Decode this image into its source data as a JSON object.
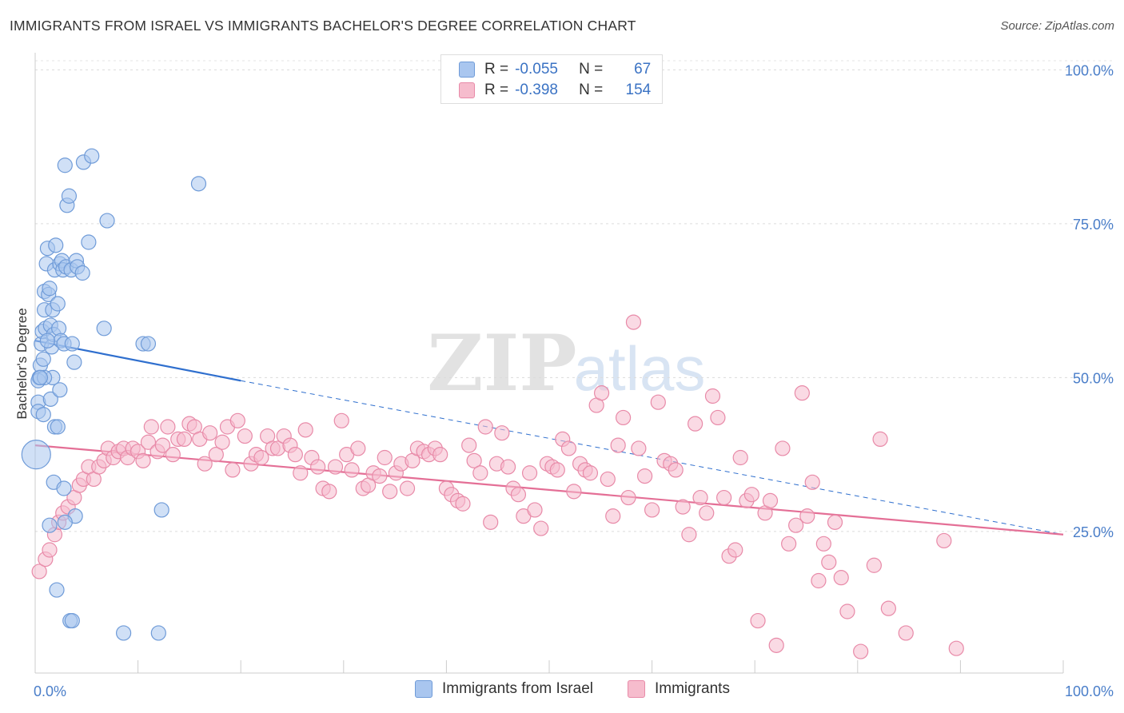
{
  "header": {
    "title": "IMMIGRANTS FROM ISRAEL VS IMMIGRANTS BACHELOR'S DEGREE CORRELATION CHART",
    "source": "Source: ZipAtlas.com"
  },
  "watermark": {
    "zip": "ZIP",
    "atlas": "atlas"
  },
  "legend": {
    "rows": [
      {
        "r_label": "R =",
        "r_value": "-0.055",
        "n_label": "N =",
        "n_value": "67",
        "color": "#a9c6ef",
        "border": "#6f9bd8"
      },
      {
        "r_label": "R =",
        "r_value": "-0.398",
        "n_label": "N =",
        "n_value": "154",
        "color": "#f6bccd",
        "border": "#e88aa8"
      }
    ]
  },
  "bottom_legend": {
    "items": [
      {
        "label": "Immigrants from Israel",
        "color": "#a9c6ef",
        "border": "#6f9bd8"
      },
      {
        "label": "Immigrants",
        "color": "#f6bccd",
        "border": "#e88aa8"
      }
    ]
  },
  "chart_data": {
    "type": "scatter",
    "title": "IMMIGRANTS FROM ISRAEL VS IMMIGRANTS BACHELOR'S DEGREE CORRELATION CHART",
    "xlabel": "",
    "ylabel": "Bachelor's Degree",
    "xlim": [
      0,
      100
    ],
    "ylim": [
      2,
      102
    ],
    "x_tick_labels": [
      {
        "value": 0,
        "label": "0.0%"
      },
      {
        "value": 100,
        "label": "100.0%"
      }
    ],
    "y_tick_labels": [
      {
        "value": 25,
        "label": "25.0%"
      },
      {
        "value": 50,
        "label": "50.0%"
      },
      {
        "value": 75,
        "label": "75.0%"
      },
      {
        "value": 100,
        "label": "100.0%"
      }
    ],
    "y_gridlines": [
      25,
      50,
      75,
      100
    ],
    "legend_position": "top-center",
    "series": [
      {
        "name": "Immigrants from Israel",
        "color": "#a9c6ef",
        "stroke": "#6f9bd8",
        "trend_color": "#2f6fce",
        "r": -0.055,
        "n": 67,
        "trend": {
          "x0": 0,
          "y0": 56,
          "x1": 20,
          "y1": 49.5,
          "dash_to_x": 100,
          "dash_to_y": 24.5
        },
        "points": [
          [
            0.1,
            37.5
          ],
          [
            0.3,
            46
          ],
          [
            0.3,
            44.5
          ],
          [
            0.4,
            50
          ],
          [
            0.5,
            52
          ],
          [
            0.6,
            55.5
          ],
          [
            0.7,
            57.5
          ],
          [
            0.8,
            53
          ],
          [
            0.9,
            61
          ],
          [
            0.9,
            64
          ],
          [
            1,
            58
          ],
          [
            1.1,
            68.5
          ],
          [
            1.2,
            71
          ],
          [
            1.3,
            63.5
          ],
          [
            1.4,
            64.5
          ],
          [
            1.5,
            58.5
          ],
          [
            1.6,
            55
          ],
          [
            1.7,
            61
          ],
          [
            1.8,
            57
          ],
          [
            1.9,
            67.5
          ],
          [
            2,
            71.5
          ],
          [
            2.2,
            62
          ],
          [
            2.3,
            58
          ],
          [
            2.4,
            68.5
          ],
          [
            2.5,
            56
          ],
          [
            2.6,
            69
          ],
          [
            2.7,
            67.5
          ],
          [
            2.8,
            55.5
          ],
          [
            2.9,
            84.5
          ],
          [
            3,
            68
          ],
          [
            3.1,
            78
          ],
          [
            3.3,
            79.5
          ],
          [
            3.5,
            67.5
          ],
          [
            3.6,
            55.5
          ],
          [
            3.8,
            52.5
          ],
          [
            4,
            69
          ],
          [
            4.1,
            68
          ],
          [
            4.6,
            67
          ],
          [
            4.7,
            85
          ],
          [
            5.2,
            72
          ],
          [
            5.5,
            86
          ],
          [
            6.7,
            58
          ],
          [
            7,
            75.5
          ],
          [
            10.5,
            55.5
          ],
          [
            11,
            55.5
          ],
          [
            15.9,
            81.5
          ],
          [
            0.3,
            49.5
          ],
          [
            0.8,
            44
          ],
          [
            1.5,
            46.5
          ],
          [
            1.9,
            42
          ],
          [
            2.2,
            42
          ],
          [
            1.7,
            50
          ],
          [
            2.4,
            48
          ],
          [
            1.8,
            33
          ],
          [
            2.8,
            32
          ],
          [
            3.9,
            27.5
          ],
          [
            1.4,
            26
          ],
          [
            2.1,
            15.5
          ],
          [
            3.4,
            10.5
          ],
          [
            3.6,
            10.5
          ],
          [
            8.6,
            8.5
          ],
          [
            12,
            8.5
          ],
          [
            12.3,
            28.5
          ],
          [
            0.9,
            50
          ],
          [
            1.2,
            56
          ],
          [
            0.5,
            50
          ],
          [
            2.9,
            26.5
          ]
        ]
      },
      {
        "name": "Immigrants",
        "color": "#f6bccd",
        "stroke": "#e88aa8",
        "trend_color": "#e46f96",
        "r": -0.398,
        "n": 154,
        "trend": {
          "x0": 0,
          "y0": 39,
          "x1": 100,
          "y1": 24.5
        },
        "points": [
          [
            0.4,
            18.5
          ],
          [
            1,
            20.5
          ],
          [
            1.4,
            22
          ],
          [
            1.9,
            24.5
          ],
          [
            2.3,
            26.5
          ],
          [
            2.7,
            28
          ],
          [
            3.2,
            29
          ],
          [
            3.8,
            30.5
          ],
          [
            4.3,
            32.5
          ],
          [
            4.7,
            33.5
          ],
          [
            5.2,
            35.5
          ],
          [
            5.7,
            33.5
          ],
          [
            6.2,
            35.5
          ],
          [
            6.7,
            36.5
          ],
          [
            7.1,
            38.5
          ],
          [
            7.6,
            37
          ],
          [
            8.1,
            38
          ],
          [
            8.6,
            38.5
          ],
          [
            9,
            37
          ],
          [
            9.5,
            38.5
          ],
          [
            10,
            38
          ],
          [
            10.5,
            36.5
          ],
          [
            11,
            39.5
          ],
          [
            11.3,
            42
          ],
          [
            11.9,
            38
          ],
          [
            12.4,
            39
          ],
          [
            12.9,
            42
          ],
          [
            13.4,
            37.5
          ],
          [
            13.9,
            40
          ],
          [
            14.5,
            40
          ],
          [
            15,
            42.5
          ],
          [
            15.5,
            42
          ],
          [
            16,
            40
          ],
          [
            16.5,
            36
          ],
          [
            17,
            41
          ],
          [
            17.6,
            37.5
          ],
          [
            18.2,
            39.5
          ],
          [
            18.7,
            42
          ],
          [
            19.2,
            35
          ],
          [
            19.7,
            43
          ],
          [
            20.4,
            40.5
          ],
          [
            21,
            36
          ],
          [
            21.5,
            37.5
          ],
          [
            22,
            37
          ],
          [
            22.6,
            40.5
          ],
          [
            23.1,
            38.5
          ],
          [
            23.6,
            38.5
          ],
          [
            24.2,
            40.5
          ],
          [
            24.8,
            39
          ],
          [
            25.3,
            37.5
          ],
          [
            25.8,
            34.5
          ],
          [
            26.3,
            41.5
          ],
          [
            26.9,
            37
          ],
          [
            27.5,
            35.5
          ],
          [
            28,
            32
          ],
          [
            28.6,
            31.5
          ],
          [
            29.2,
            35.5
          ],
          [
            29.8,
            43
          ],
          [
            30.3,
            37.5
          ],
          [
            30.8,
            35
          ],
          [
            31.4,
            38.5
          ],
          [
            31.9,
            32
          ],
          [
            32.4,
            32.5
          ],
          [
            32.9,
            34.5
          ],
          [
            33.5,
            34
          ],
          [
            34,
            37
          ],
          [
            34.5,
            31.5
          ],
          [
            35.1,
            34.5
          ],
          [
            35.6,
            36
          ],
          [
            36.2,
            32
          ],
          [
            36.7,
            36.5
          ],
          [
            37.2,
            38.5
          ],
          [
            37.8,
            38
          ],
          [
            38.3,
            37.5
          ],
          [
            38.9,
            38.5
          ],
          [
            39.4,
            37.5
          ],
          [
            40,
            32
          ],
          [
            40.5,
            31
          ],
          [
            41.1,
            30
          ],
          [
            41.6,
            29.5
          ],
          [
            42.2,
            39
          ],
          [
            42.7,
            36.5
          ],
          [
            43.3,
            34.5
          ],
          [
            43.8,
            42
          ],
          [
            44.3,
            26.5
          ],
          [
            44.9,
            36
          ],
          [
            45.4,
            41
          ],
          [
            46,
            35.5
          ],
          [
            46.5,
            32
          ],
          [
            47,
            31
          ],
          [
            47.5,
            27.5
          ],
          [
            48.1,
            34.5
          ],
          [
            48.6,
            28.5
          ],
          [
            49.2,
            25.5
          ],
          [
            49.8,
            36
          ],
          [
            50.3,
            35.5
          ],
          [
            50.8,
            35
          ],
          [
            51.3,
            40
          ],
          [
            51.9,
            38.5
          ],
          [
            52.4,
            31.5
          ],
          [
            53,
            36
          ],
          [
            53.5,
            35
          ],
          [
            54,
            34.5
          ],
          [
            54.6,
            45.5
          ],
          [
            55.1,
            47.5
          ],
          [
            55.7,
            33.5
          ],
          [
            56.2,
            27.5
          ],
          [
            56.7,
            39
          ],
          [
            57.2,
            43.5
          ],
          [
            57.7,
            30.5
          ],
          [
            58.2,
            59
          ],
          [
            58.7,
            38.5
          ],
          [
            59.3,
            34
          ],
          [
            60,
            28.5
          ],
          [
            60.6,
            46
          ],
          [
            61.2,
            36.5
          ],
          [
            61.8,
            36
          ],
          [
            62.3,
            35
          ],
          [
            63,
            29
          ],
          [
            63.6,
            24.5
          ],
          [
            64.2,
            42.5
          ],
          [
            64.7,
            30.5
          ],
          [
            65.3,
            28
          ],
          [
            65.9,
            47
          ],
          [
            66.4,
            43.5
          ],
          [
            67,
            30.5
          ],
          [
            67.5,
            21
          ],
          [
            68.1,
            22
          ],
          [
            68.6,
            37
          ],
          [
            69.2,
            30
          ],
          [
            69.7,
            31
          ],
          [
            70.3,
            10.5
          ],
          [
            71,
            28
          ],
          [
            71.5,
            30
          ],
          [
            72.1,
            6.5
          ],
          [
            72.7,
            38.5
          ],
          [
            73.3,
            23
          ],
          [
            74,
            26
          ],
          [
            74.6,
            47.5
          ],
          [
            75.1,
            27.5
          ],
          [
            75.6,
            33
          ],
          [
            76.2,
            17
          ],
          [
            76.7,
            23
          ],
          [
            77.2,
            20
          ],
          [
            77.8,
            26.5
          ],
          [
            78.4,
            17.5
          ],
          [
            79,
            12
          ],
          [
            80.3,
            5.5
          ],
          [
            81.6,
            19.5
          ],
          [
            82.2,
            40
          ],
          [
            83,
            12.5
          ],
          [
            84.7,
            8.5
          ],
          [
            88.4,
            23.5
          ],
          [
            89.6,
            6
          ]
        ]
      }
    ]
  }
}
